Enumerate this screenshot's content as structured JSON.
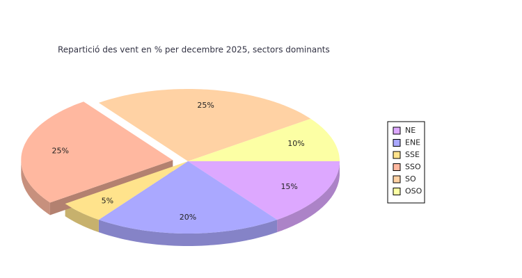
{
  "chart_data": {
    "type": "pie3d",
    "title": "Repartició des vent en % per decembre 2025, sectors dominants",
    "categories": [
      "NE",
      "ENE",
      "SSE",
      "SSO",
      "SO",
      "OSO"
    ],
    "values": [
      15,
      20,
      5,
      25,
      25,
      10
    ],
    "value_labels": [
      "15%",
      "20%",
      "5%",
      "25%",
      "25%",
      "10%"
    ],
    "colors": [
      "#dda8ff",
      "#aaa8ff",
      "#ffe38c",
      "#ffb8a0",
      "#ffd2a4",
      "#fcffa4"
    ],
    "exploded": "SSO",
    "legend": "right"
  }
}
